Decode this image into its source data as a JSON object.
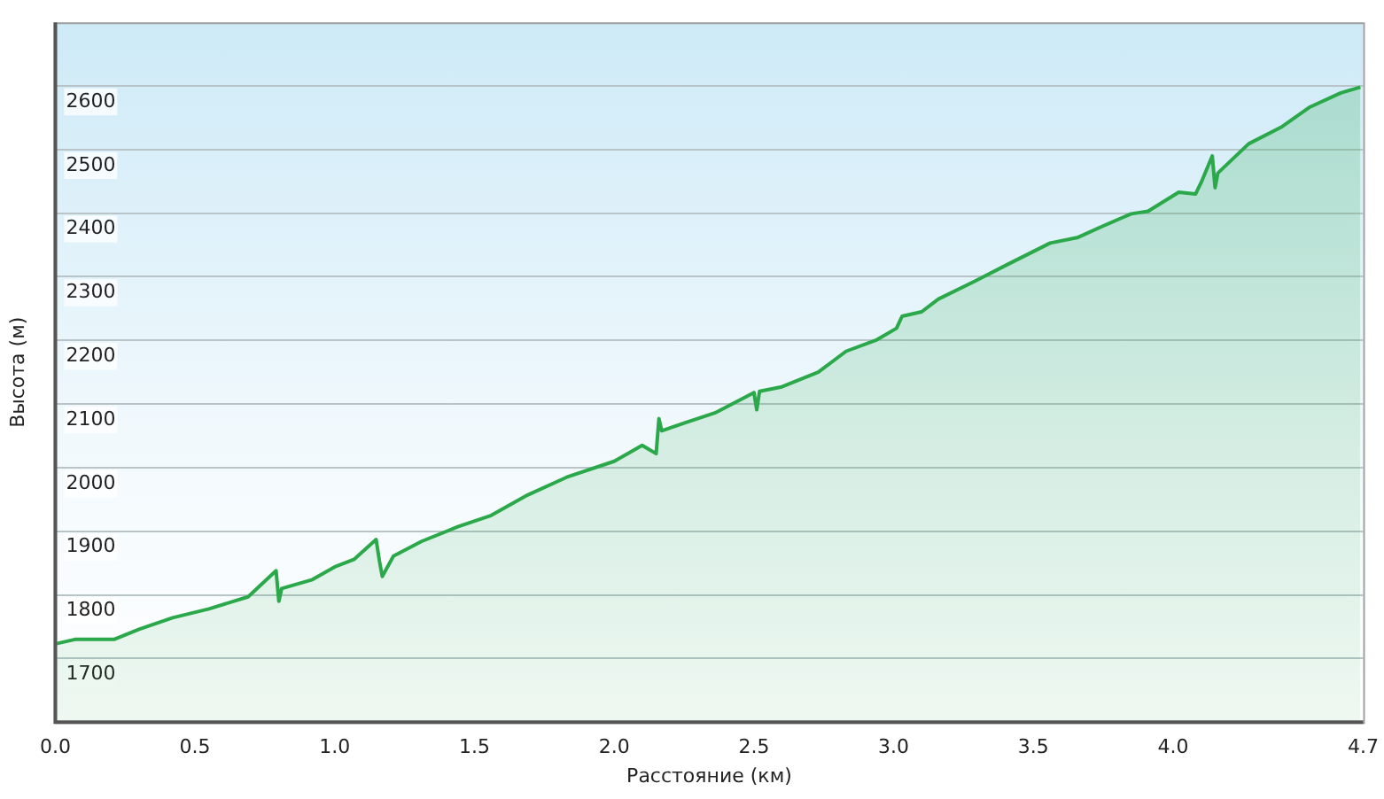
{
  "chart_data": {
    "type": "area",
    "xlabel": "Расстояние (км)",
    "ylabel": "Высота (м)",
    "xlim": [
      0,
      4.68
    ],
    "xticks": [
      {
        "value": 0,
        "label": "0.0"
      },
      {
        "value": 0.5,
        "label": "0.5"
      },
      {
        "value": 1,
        "label": "1.0"
      },
      {
        "value": 1.5,
        "label": "1.5"
      },
      {
        "value": 2,
        "label": "2.0"
      },
      {
        "value": 2.5,
        "label": "2.5"
      },
      {
        "value": 3,
        "label": "3.0"
      },
      {
        "value": 3.5,
        "label": "3.5"
      },
      {
        "value": 4,
        "label": "4.0"
      },
      {
        "value": 4.68,
        "label": "4.7"
      }
    ],
    "ylim": [
      1600,
      2700
    ],
    "yticks": [
      1700,
      1800,
      1900,
      2000,
      2100,
      2200,
      2300,
      2400,
      2500,
      2600
    ],
    "grid": "y",
    "legend": false,
    "marker": "none",
    "line_style": "solid",
    "series": [
      {
        "color": "#2aa84a",
        "x": [
          0,
          0.07,
          0.21,
          0.3,
          0.42,
          0.55,
          0.69,
          0.79,
          0.8,
          0.81,
          0.92,
          1,
          1.07,
          1.148,
          1.16,
          1.17,
          1.21,
          1.31,
          1.44,
          1.56,
          1.69,
          1.83,
          2,
          2.1,
          2.15,
          2.16,
          2.17,
          2.25,
          2.36,
          2.5,
          2.51,
          2.52,
          2.6,
          2.73,
          2.83,
          2.94,
          3.01,
          3.03,
          3.1,
          3.16,
          3.29,
          3.41,
          3.56,
          3.66,
          3.75,
          3.85,
          3.91,
          4.02,
          4.08,
          4.1,
          4.14,
          4.15,
          4.16,
          4.27,
          4.39,
          4.49,
          4.6,
          4.67
        ],
        "values": [
          1723,
          1730,
          1730,
          1746,
          1764,
          1778,
          1797,
          1838,
          1790,
          1810,
          1824,
          1844,
          1856,
          1887,
          1853,
          1829,
          1861,
          1884,
          1907,
          1925,
          1957,
          1985,
          2010,
          2035,
          2022,
          2077,
          2058,
          2070,
          2086,
          2118,
          2091,
          2120,
          2127,
          2150,
          2183,
          2201,
          2219,
          2238,
          2245,
          2265,
          2293,
          2320,
          2353,
          2362,
          2380,
          2399,
          2403,
          2433,
          2430,
          2448,
          2490,
          2440,
          2463,
          2509,
          2536,
          2567,
          2589,
          2598
        ]
      }
    ]
  }
}
